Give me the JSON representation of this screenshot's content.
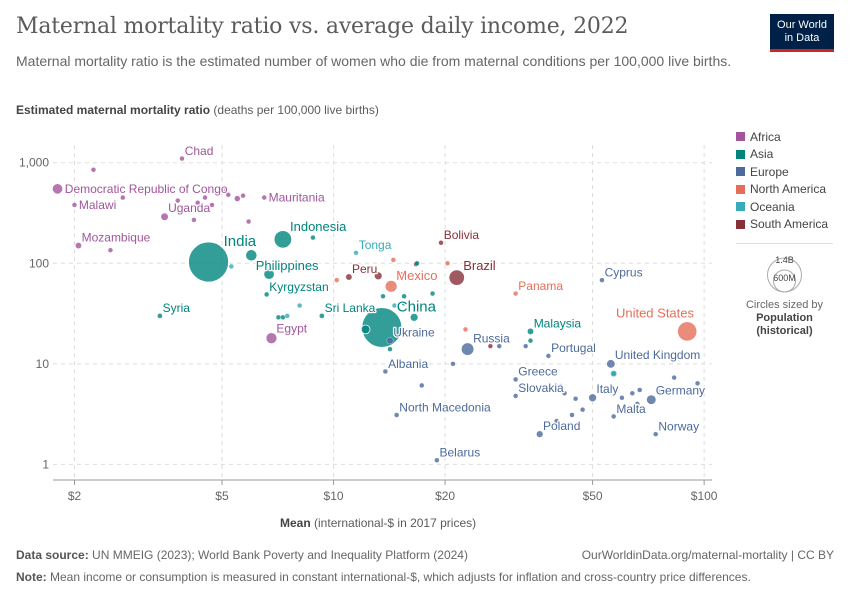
{
  "header": {
    "title": "Maternal mortality ratio vs. average daily income, 2022",
    "subtitle": "Maternal mortality ratio is the estimated number of women who die from maternal conditions per 100,000 live births."
  },
  "logo": {
    "line1": "Our World",
    "line2": "in Data"
  },
  "axes": {
    "y_title_bold": "Estimated maternal mortality ratio",
    "y_title_rest": " (deaths per 100,000 live births)",
    "x_title_bold": "Mean",
    "x_title_rest": " (international-$ in 2017 prices)"
  },
  "legend": {
    "items": [
      {
        "label": "Africa",
        "color": "#a2559c"
      },
      {
        "label": "Asia",
        "color": "#00847e"
      },
      {
        "label": "Europe",
        "color": "#4c6a9c"
      },
      {
        "label": "North America",
        "color": "#e56e5a"
      },
      {
        "label": "Oceania",
        "color": "#38aaba"
      },
      {
        "label": "South America",
        "color": "#883039"
      }
    ],
    "size_title": "Circles sized by",
    "size_variable": "Population",
    "size_variable_note": "(historical)",
    "size_big": "1.4B",
    "size_small": "600M"
  },
  "footer": {
    "source_label": "Data source:",
    "source_text": " UN MMEIG (2023); World Bank Poverty and Inequality Platform (2024)",
    "url": "OurWorldinData.org/maternal-mortality | CC BY",
    "note_label": "Note:",
    "note_text": " Mean income or consumption is measured in constant international-$, which adjusts for inflation and cross-country price differences."
  },
  "chart_data": {
    "type": "scatter",
    "title": "Maternal mortality ratio vs. average daily income, 2022",
    "xlabel": "Mean (international-$ in 2017 prices)",
    "ylabel": "Estimated maternal mortality ratio (deaths per 100,000 live births)",
    "x_scale": "log",
    "y_scale": "log",
    "xlim": [
      1.75,
      105
    ],
    "ylim": [
      0.7,
      1500
    ],
    "x_ticks": [
      {
        "v": 2,
        "label": "$2"
      },
      {
        "v": 5,
        "label": "$5"
      },
      {
        "v": 10,
        "label": "$10"
      },
      {
        "v": 20,
        "label": "$20"
      },
      {
        "v": 50,
        "label": "$50"
      },
      {
        "v": 100,
        "label": "$100"
      }
    ],
    "y_ticks": [
      {
        "v": 1,
        "label": "1"
      },
      {
        "v": 10,
        "label": "10"
      },
      {
        "v": 100,
        "label": "100"
      },
      {
        "v": 1000,
        "label": "1,000"
      }
    ],
    "points": [
      {
        "name": "Democratic Republic of Congo",
        "region": "Africa",
        "x": 1.8,
        "y": 550,
        "pop": 99,
        "label": true,
        "lpos": "right"
      },
      {
        "name": "Chad",
        "region": "Africa",
        "x": 3.9,
        "y": 1100,
        "pop": 18,
        "label": true,
        "lpos": "above-right"
      },
      {
        "name": "Malawi",
        "region": "Africa",
        "x": 2.0,
        "y": 380,
        "pop": 20,
        "label": true,
        "lpos": "right"
      },
      {
        "name": "Mauritania",
        "region": "Africa",
        "x": 6.5,
        "y": 450,
        "pop": 5,
        "label": true,
        "lpos": "right"
      },
      {
        "name": "Uganda",
        "region": "Africa",
        "x": 3.5,
        "y": 290,
        "pop": 47,
        "label": true,
        "lpos": "above-right"
      },
      {
        "name": "Mozambique",
        "region": "Africa",
        "x": 2.05,
        "y": 150,
        "pop": 33,
        "label": true,
        "lpos": "above-right"
      },
      {
        "name": "Egypt",
        "region": "Africa",
        "x": 6.8,
        "y": 18,
        "pop": 110,
        "label": true,
        "lpos": "above-right"
      },
      {
        "name": "",
        "region": "Africa",
        "x": 2.25,
        "y": 850,
        "pop": 12,
        "label": false
      },
      {
        "name": "",
        "region": "Africa",
        "x": 2.5,
        "y": 135,
        "pop": 14,
        "label": false
      },
      {
        "name": "",
        "region": "Africa",
        "x": 2.7,
        "y": 450,
        "pop": 8,
        "label": false
      },
      {
        "name": "",
        "region": "Africa",
        "x": 3.5,
        "y": 540,
        "pop": 35,
        "label": false
      },
      {
        "name": "",
        "region": "Africa",
        "x": 3.8,
        "y": 420,
        "pop": 10,
        "label": false
      },
      {
        "name": "",
        "region": "Africa",
        "x": 4.2,
        "y": 270,
        "pop": 15,
        "label": false
      },
      {
        "name": "",
        "region": "Africa",
        "x": 4.3,
        "y": 400,
        "pop": 12,
        "label": false
      },
      {
        "name": "",
        "region": "Africa",
        "x": 4.5,
        "y": 450,
        "pop": 20,
        "label": false
      },
      {
        "name": "",
        "region": "Africa",
        "x": 4.7,
        "y": 380,
        "pop": 10,
        "label": false
      },
      {
        "name": "",
        "region": "Africa",
        "x": 5.1,
        "y": 530,
        "pop": 15,
        "label": false
      },
      {
        "name": "",
        "region": "Africa",
        "x": 5.2,
        "y": 480,
        "pop": 8,
        "label": false
      },
      {
        "name": "",
        "region": "Africa",
        "x": 5.5,
        "y": 440,
        "pop": 30,
        "label": false
      },
      {
        "name": "",
        "region": "Africa",
        "x": 5.7,
        "y": 470,
        "pop": 12,
        "label": false
      },
      {
        "name": "",
        "region": "Africa",
        "x": 5.9,
        "y": 260,
        "pop": 5,
        "label": false
      },
      {
        "name": "India",
        "region": "Asia",
        "x": 4.6,
        "y": 103,
        "pop": 1420,
        "label": true,
        "lpos": "above-right"
      },
      {
        "name": "Indonesia",
        "region": "Asia",
        "x": 7.3,
        "y": 173,
        "pop": 275,
        "label": true,
        "lpos": "above-right"
      },
      {
        "name": "Philippines",
        "region": "Asia",
        "x": 6.0,
        "y": 120,
        "pop": 115,
        "label": true,
        "lpos": "below-right"
      },
      {
        "name": "Kyrgyzstan",
        "region": "Asia",
        "x": 6.6,
        "y": 49,
        "pop": 7,
        "label": true,
        "lpos": "above-right"
      },
      {
        "name": "Syria",
        "region": "Asia",
        "x": 3.4,
        "y": 30,
        "pop": 22,
        "label": true,
        "lpos": "above-right"
      },
      {
        "name": "Sri Lanka",
        "region": "Asia",
        "x": 9.3,
        "y": 30,
        "pop": 22,
        "label": true,
        "lpos": "above-right"
      },
      {
        "name": "China",
        "region": "Asia",
        "x": 13.5,
        "y": 23,
        "pop": 1410,
        "label": true,
        "lpos": "above-right"
      },
      {
        "name": "Malaysia",
        "region": "Asia",
        "x": 34,
        "y": 21,
        "pop": 34,
        "label": true,
        "lpos": "above-right"
      },
      {
        "name": "",
        "region": "Asia",
        "x": 6.7,
        "y": 78,
        "pop": 100,
        "label": false
      },
      {
        "name": "",
        "region": "Asia",
        "x": 8.8,
        "y": 180,
        "pop": 15,
        "label": false
      },
      {
        "name": "",
        "region": "Asia",
        "x": 7.1,
        "y": 29,
        "pop": 10,
        "label": false
      },
      {
        "name": "",
        "region": "Asia",
        "x": 7.3,
        "y": 29,
        "pop": 10,
        "label": false
      },
      {
        "name": "",
        "region": "Asia",
        "x": 12.2,
        "y": 22,
        "pop": 70,
        "label": false
      },
      {
        "name": "",
        "region": "Asia",
        "x": 12.8,
        "y": 35,
        "pop": 20,
        "label": false
      },
      {
        "name": "",
        "region": "Asia",
        "x": 13.6,
        "y": 47,
        "pop": 8,
        "label": false
      },
      {
        "name": "",
        "region": "Asia",
        "x": 15.5,
        "y": 47,
        "pop": 8,
        "label": false
      },
      {
        "name": "",
        "region": "Asia",
        "x": 16.5,
        "y": 29,
        "pop": 50,
        "label": false
      },
      {
        "name": "",
        "region": "Asia",
        "x": 15.5,
        "y": 40,
        "pop": 10,
        "label": false
      },
      {
        "name": "",
        "region": "Asia",
        "x": 18.5,
        "y": 50,
        "pop": 6,
        "label": false
      },
      {
        "name": "",
        "region": "Asia",
        "x": 34,
        "y": 17,
        "pop": 6,
        "label": false
      },
      {
        "name": "",
        "region": "Asia",
        "x": 14.2,
        "y": 14,
        "pop": 8,
        "label": false
      },
      {
        "name": "",
        "region": "Asia",
        "x": 16.8,
        "y": 100,
        "pop": 6,
        "label": false
      },
      {
        "name": "",
        "region": "Asia",
        "x": 57,
        "y": 8,
        "pop": 35,
        "label": false
      },
      {
        "name": "Tonga",
        "region": "Oceania",
        "x": 11.5,
        "y": 127,
        "pop": 5,
        "label": true,
        "lpos": "above-right"
      },
      {
        "name": "",
        "region": "Oceania",
        "x": 8.1,
        "y": 38,
        "pop": 5,
        "label": false
      },
      {
        "name": "",
        "region": "Oceania",
        "x": 7.5,
        "y": 30,
        "pop": 5,
        "label": false
      },
      {
        "name": "",
        "region": "Oceania",
        "x": 5.3,
        "y": 93,
        "pop": 5,
        "label": false
      },
      {
        "name": "",
        "region": "Oceania",
        "x": 14.6,
        "y": 38,
        "pop": 5,
        "label": false
      },
      {
        "name": "",
        "region": "Oceania",
        "x": 57,
        "y": 8,
        "pop": 26,
        "label": false
      },
      {
        "name": "Ukraine",
        "region": "Europe",
        "x": 14.2,
        "y": 17,
        "pop": 38,
        "label": true,
        "lpos": "above-right"
      },
      {
        "name": "Russia",
        "region": "Europe",
        "x": 23,
        "y": 14,
        "pop": 144,
        "label": true,
        "lpos": "above-right"
      },
      {
        "name": "Portugal",
        "region": "Europe",
        "x": 38,
        "y": 12,
        "pop": 10,
        "label": true,
        "lpos": "above-right"
      },
      {
        "name": "Albania",
        "region": "Europe",
        "x": 13.8,
        "y": 8.4,
        "pop": 3,
        "label": true,
        "lpos": "above-right"
      },
      {
        "name": "Greece",
        "region": "Europe",
        "x": 31,
        "y": 7,
        "pop": 10,
        "label": true,
        "lpos": "above-right"
      },
      {
        "name": "Slovakia",
        "region": "Europe",
        "x": 31,
        "y": 4.8,
        "pop": 5,
        "label": true,
        "lpos": "above-right"
      },
      {
        "name": "North Macedonia",
        "region": "Europe",
        "x": 14.8,
        "y": 3.1,
        "pop": 2,
        "label": true,
        "lpos": "above-right"
      },
      {
        "name": "Cyprus",
        "region": "Europe",
        "x": 53,
        "y": 68,
        "pop": 1,
        "label": true,
        "lpos": "above-right"
      },
      {
        "name": "United Kingdom",
        "region": "Europe",
        "x": 56,
        "y": 10,
        "pop": 67,
        "label": true,
        "lpos": "above-right"
      },
      {
        "name": "Italy",
        "region": "Europe",
        "x": 50,
        "y": 4.6,
        "pop": 59,
        "label": true,
        "lpos": "above-right"
      },
      {
        "name": "Germany",
        "region": "Europe",
        "x": 72,
        "y": 4.4,
        "pop": 84,
        "label": true,
        "lpos": "above-right"
      },
      {
        "name": "Malta",
        "region": "Europe",
        "x": 57,
        "y": 3.0,
        "pop": 1,
        "label": true,
        "lpos": "above-right"
      },
      {
        "name": "Poland",
        "region": "Europe",
        "x": 36,
        "y": 2.0,
        "pop": 38,
        "label": true,
        "lpos": "above-right"
      },
      {
        "name": "Norway",
        "region": "Europe",
        "x": 74,
        "y": 2.0,
        "pop": 5,
        "label": true,
        "lpos": "above-right"
      },
      {
        "name": "Belarus",
        "region": "Europe",
        "x": 19,
        "y": 1.1,
        "pop": 9,
        "label": true,
        "lpos": "above-right"
      },
      {
        "name": "",
        "region": "Europe",
        "x": 17.3,
        "y": 6.1,
        "pop": 7,
        "label": false
      },
      {
        "name": "",
        "region": "Europe",
        "x": 21,
        "y": 10,
        "pop": 4,
        "label": false
      },
      {
        "name": "",
        "region": "Europe",
        "x": 28,
        "y": 15,
        "pop": 3,
        "label": false
      },
      {
        "name": "",
        "region": "Europe",
        "x": 33,
        "y": 15,
        "pop": 3,
        "label": false
      },
      {
        "name": "",
        "region": "Europe",
        "x": 41,
        "y": 6,
        "pop": 2,
        "label": false
      },
      {
        "name": "",
        "region": "Europe",
        "x": 42,
        "y": 5.1,
        "pop": 4,
        "label": false
      },
      {
        "name": "",
        "region": "Europe",
        "x": 45,
        "y": 4.5,
        "pop": 4,
        "label": false
      },
      {
        "name": "",
        "region": "Europe",
        "x": 47,
        "y": 3.5,
        "pop": 17,
        "label": false
      },
      {
        "name": "",
        "region": "Europe",
        "x": 40,
        "y": 2.7,
        "pop": 5,
        "label": false
      },
      {
        "name": "",
        "region": "Europe",
        "x": 44,
        "y": 3.1,
        "pop": 5,
        "label": false
      },
      {
        "name": "",
        "region": "Europe",
        "x": 60,
        "y": 4.6,
        "pop": 11,
        "label": false
      },
      {
        "name": "",
        "region": "Europe",
        "x": 64,
        "y": 5.1,
        "pop": 10,
        "label": false
      },
      {
        "name": "",
        "region": "Europe",
        "x": 66,
        "y": 4.0,
        "pop": 5,
        "label": false
      },
      {
        "name": "",
        "region": "Europe",
        "x": 67,
        "y": 5.5,
        "pop": 9,
        "label": false
      },
      {
        "name": "",
        "region": "Europe",
        "x": 83,
        "y": 7.3,
        "pop": 9,
        "label": false
      },
      {
        "name": "",
        "region": "Europe",
        "x": 96,
        "y": 6.4,
        "pop": 1,
        "label": false
      },
      {
        "name": "",
        "region": "Europe",
        "x": 76,
        "y": 5.3,
        "pop": 6,
        "label": false
      },
      {
        "name": "United States",
        "region": "North America",
        "x": 90,
        "y": 21,
        "pop": 335,
        "label": true,
        "lpos": "above-left"
      },
      {
        "name": "Mexico",
        "region": "North America",
        "x": 14.3,
        "y": 59,
        "pop": 128,
        "label": true,
        "lpos": "above-right"
      },
      {
        "name": "Panama",
        "region": "North America",
        "x": 31,
        "y": 50,
        "pop": 4,
        "label": true,
        "lpos": "above-right"
      },
      {
        "name": "",
        "region": "North America",
        "x": 10.2,
        "y": 68,
        "pop": 10,
        "label": false
      },
      {
        "name": "",
        "region": "North America",
        "x": 14.5,
        "y": 108,
        "pop": 5,
        "label": false
      },
      {
        "name": "",
        "region": "North America",
        "x": 15.3,
        "y": 78,
        "pop": 5,
        "label": false
      },
      {
        "name": "",
        "region": "North America",
        "x": 20.3,
        "y": 100,
        "pop": 3,
        "label": false
      },
      {
        "name": "",
        "region": "North America",
        "x": 22.7,
        "y": 22,
        "pop": 3,
        "label": false
      },
      {
        "name": "Bolivia",
        "region": "South America",
        "x": 19.5,
        "y": 160,
        "pop": 12,
        "label": true,
        "lpos": "above-right"
      },
      {
        "name": "Peru",
        "region": "South America",
        "x": 11,
        "y": 73,
        "pop": 34,
        "label": true,
        "lpos": "above-right"
      },
      {
        "name": "Brazil",
        "region": "South America",
        "x": 21.5,
        "y": 72,
        "pop": 216,
        "label": true,
        "lpos": "above-right"
      },
      {
        "name": "",
        "region": "South America",
        "x": 13.2,
        "y": 75,
        "pop": 50,
        "label": false
      },
      {
        "name": "",
        "region": "South America",
        "x": 16.7,
        "y": 98,
        "pop": 7,
        "label": false
      },
      {
        "name": "",
        "region": "South America",
        "x": 26.5,
        "y": 15,
        "pop": 3,
        "label": false
      }
    ]
  }
}
